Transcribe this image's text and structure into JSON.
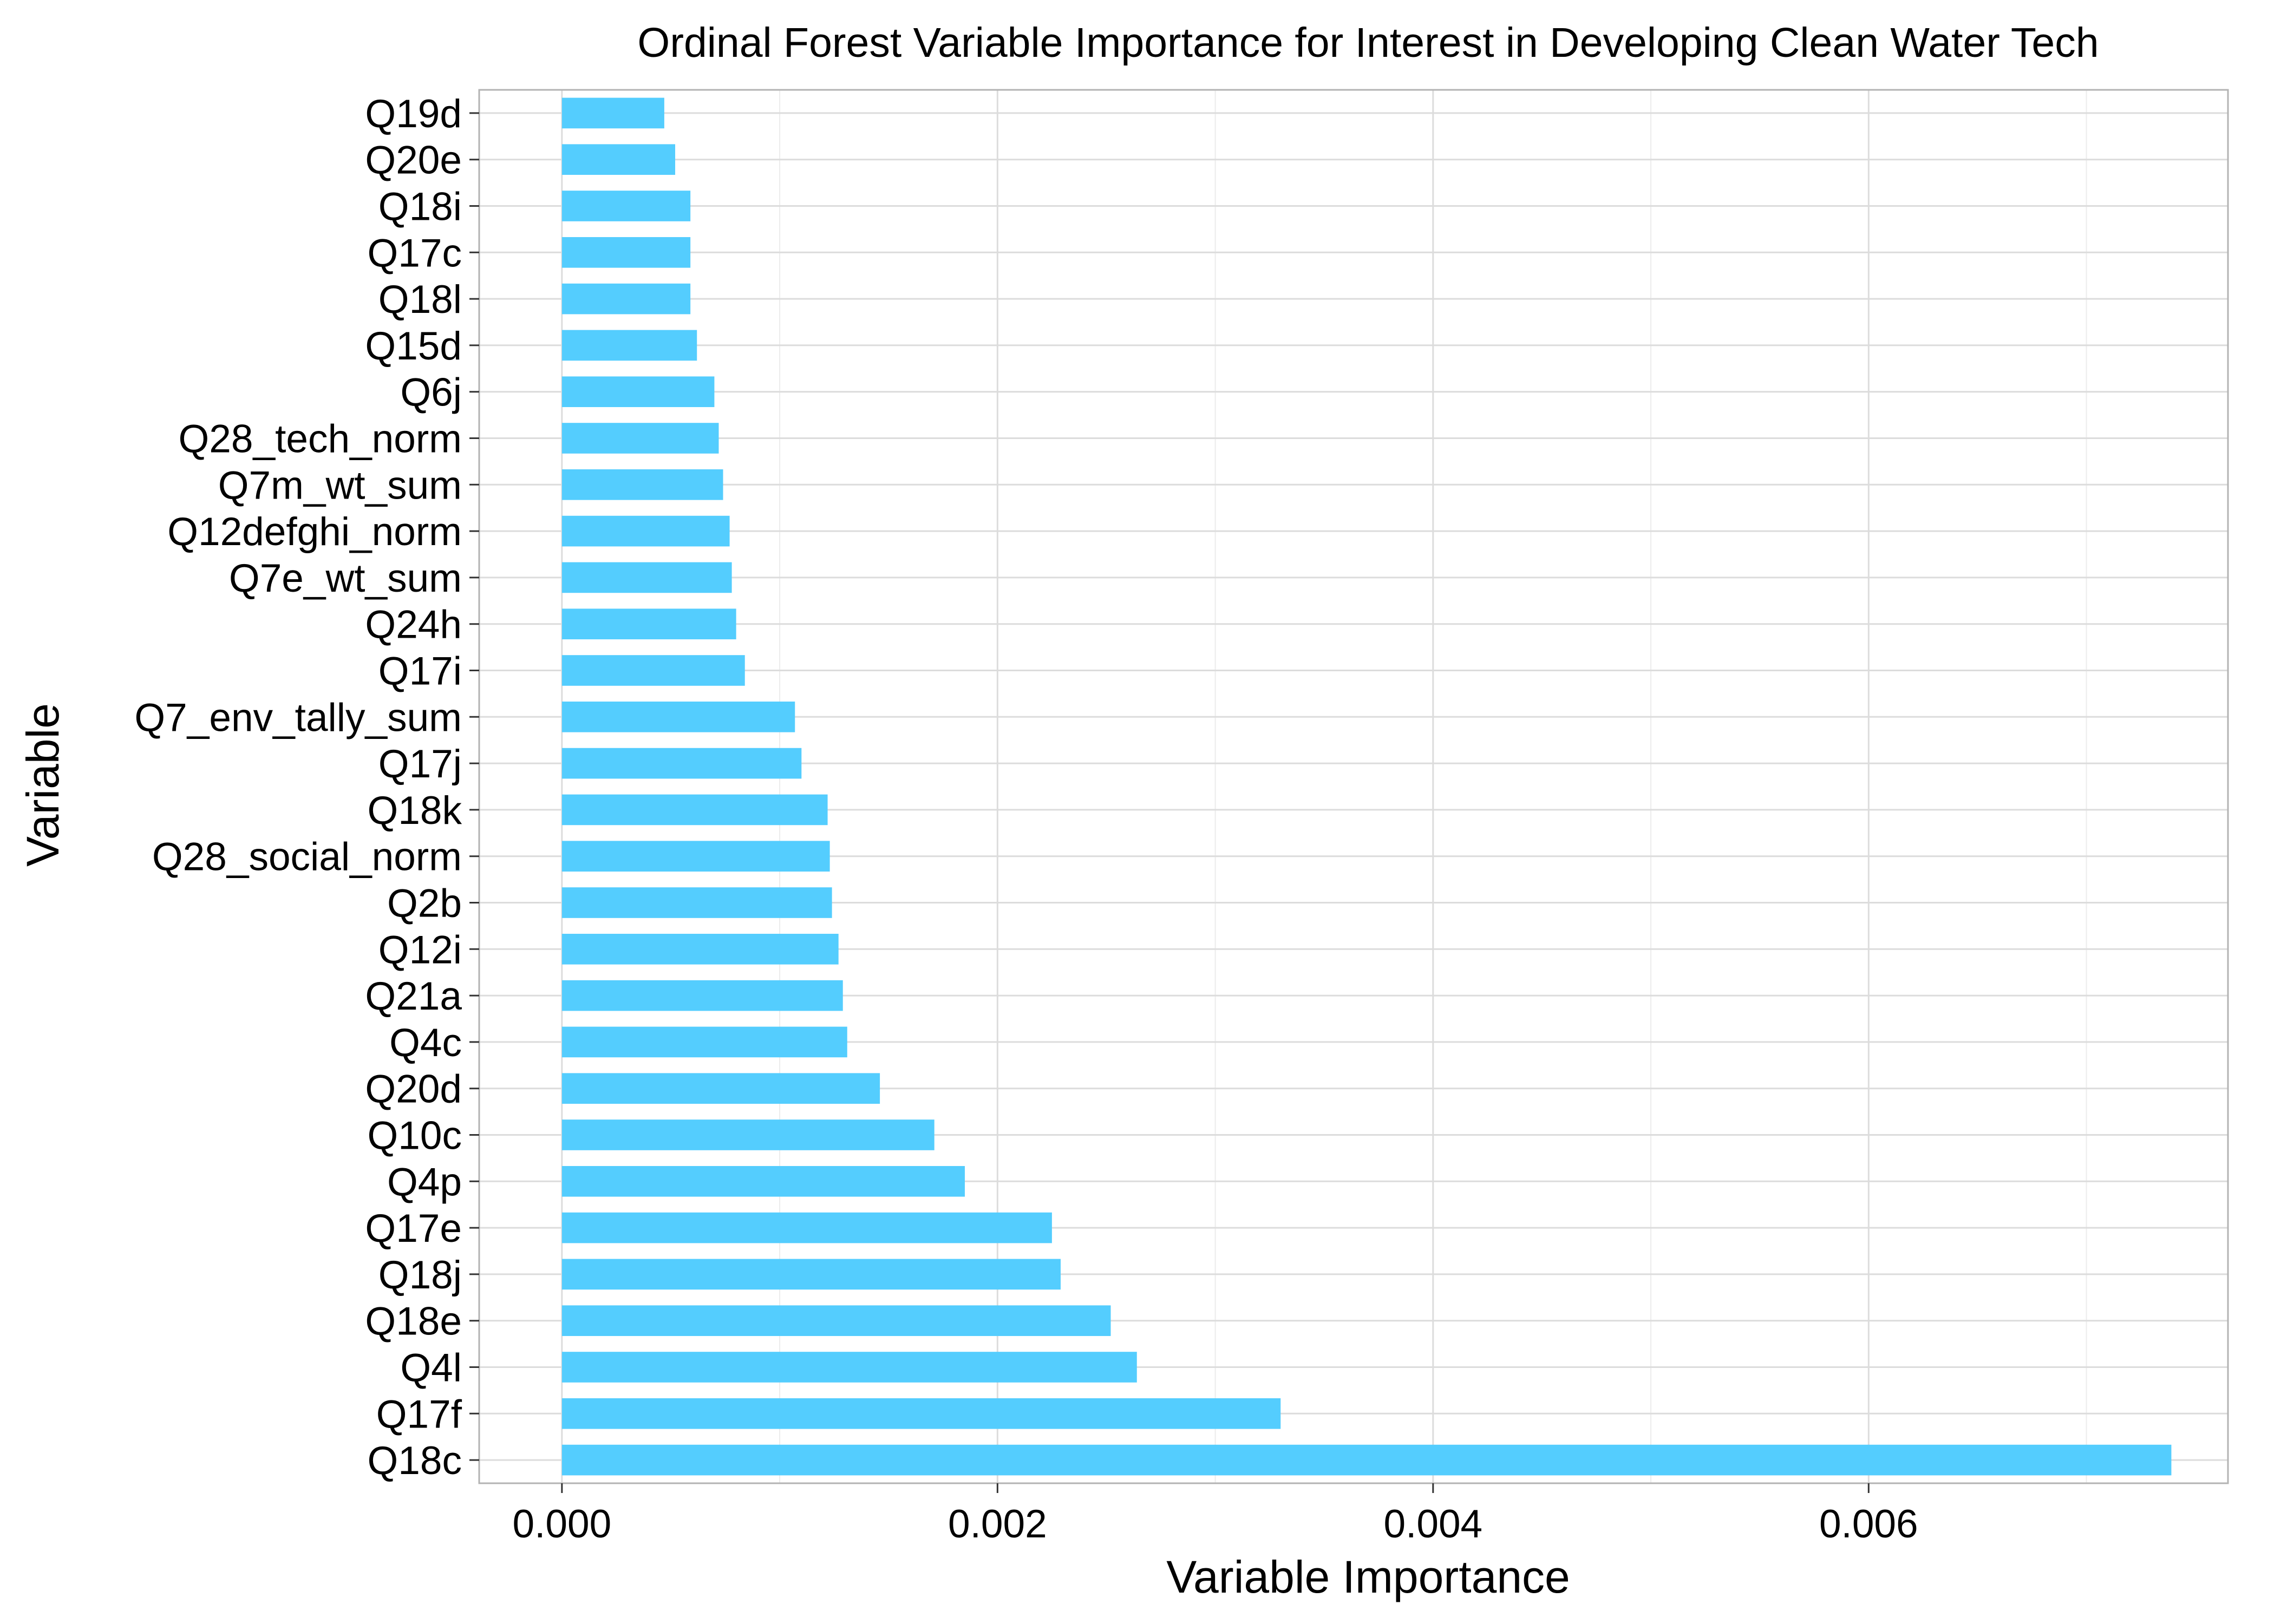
{
  "chart_data": {
    "type": "bar",
    "orientation": "horizontal",
    "title": "Ordinal Forest Variable Importance for Interest in Developing Clean Water Tech",
    "xlabel": "Variable Importance",
    "ylabel": "Variable",
    "xlim": [
      -0.00038,
      0.00765
    ],
    "xticks": [
      0.0,
      0.002,
      0.004,
      0.006
    ],
    "xtick_labels": [
      "0.000",
      "0.002",
      "0.004",
      "0.006"
    ],
    "bar_color": "#54cdfe",
    "grid": true,
    "categories": [
      "Q19d",
      "Q20e",
      "Q18i",
      "Q17c",
      "Q18l",
      "Q15d",
      "Q6j",
      "Q28_tech_norm",
      "Q7m_wt_sum",
      "Q12defghi_norm",
      "Q7e_wt_sum",
      "Q24h",
      "Q17i",
      "Q7_env_tally_sum",
      "Q17j",
      "Q18k",
      "Q28_social_norm",
      "Q2b",
      "Q12i",
      "Q21a",
      "Q4c",
      "Q20d",
      "Q10c",
      "Q4p",
      "Q17e",
      "Q18j",
      "Q18e",
      "Q4l",
      "Q17f",
      "Q18c"
    ],
    "values": [
      0.00047,
      0.00052,
      0.00059,
      0.00059,
      0.00059,
      0.00062,
      0.0007,
      0.00072,
      0.00074,
      0.00077,
      0.00078,
      0.0008,
      0.00084,
      0.00107,
      0.0011,
      0.00122,
      0.00123,
      0.00124,
      0.00127,
      0.00129,
      0.00131,
      0.00146,
      0.00171,
      0.00185,
      0.00225,
      0.00229,
      0.00252,
      0.00264,
      0.0033,
      0.00739
    ]
  }
}
